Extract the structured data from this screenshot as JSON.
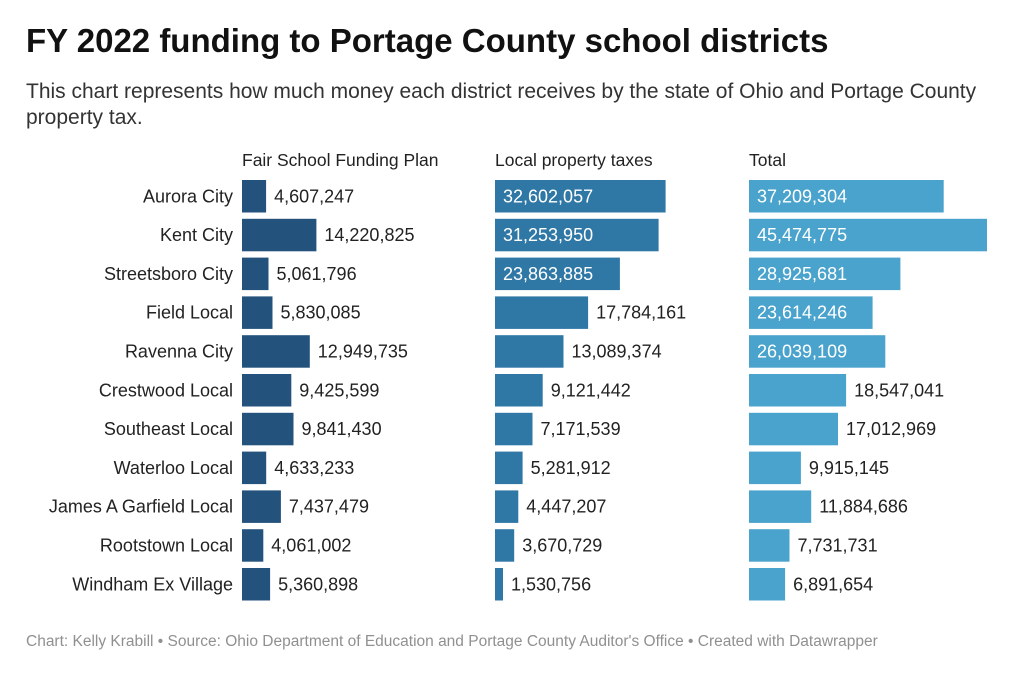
{
  "header": {
    "title": "FY 2022 funding to Portage County school districts",
    "subtitle": "This chart represents how much money each district receives by the state of Ohio and Portage County property tax."
  },
  "footer": {
    "text": "Chart: Kelly Krabill • Source: Ohio Department of Education and Portage County Auditor's Office • Created with Datawrapper"
  },
  "colors": {
    "fair_school": "#23527c",
    "local_property": "#2f78a6",
    "total": "#4aa3cc",
    "label_dark": "#222222",
    "label_light": "#ffffff"
  },
  "chart_data": {
    "type": "bar",
    "orientation": "horizontal",
    "categories": [
      "Aurora City",
      "Kent City",
      "Streetsboro City",
      "Field Local",
      "Ravenna City",
      "Crestwood Local",
      "Southeast Local",
      "Waterloo Local",
      "James A Garfield Local",
      "Rootstown Local",
      "Windham Ex Village"
    ],
    "series": [
      {
        "name": "Fair School Funding Plan",
        "values": [
          4607247,
          14220825,
          5061796,
          5830085,
          12949735,
          9425599,
          9841430,
          4633233,
          7437479,
          4061002,
          5360898
        ]
      },
      {
        "name": "Local property taxes",
        "values": [
          32602057,
          31253950,
          23863885,
          17784161,
          13089374,
          9121442,
          7171539,
          5281912,
          4447207,
          3670729,
          1530756
        ]
      },
      {
        "name": "Total",
        "values": [
          37209304,
          45474775,
          28925681,
          23614246,
          26039109,
          18547041,
          17012969,
          9915145,
          11884686,
          7731731,
          6891654
        ]
      }
    ],
    "value_labels": [
      [
        "4,607,247",
        "14,220,825",
        "5,061,796",
        "5,830,085",
        "12,949,735",
        "9,425,599",
        "9,841,430",
        "4,633,233",
        "7,437,479",
        "4,061,002",
        "5,360,898"
      ],
      [
        "32,602,057",
        "31,253,950",
        "23,863,885",
        "17,784,161",
        "13,089,374",
        "9,121,442",
        "7,171,539",
        "5,281,912",
        "4,447,207",
        "3,670,729",
        "1,530,756"
      ],
      [
        "37,209,304",
        "45,474,775",
        "28,925,681",
        "23,614,246",
        "26,039,109",
        "18,547,041",
        "17,012,969",
        "9,915,145",
        "11,884,686",
        "7,731,731",
        "6,891,654"
      ]
    ],
    "label_inside": [
      [
        false,
        false,
        false,
        false,
        false,
        false,
        false,
        false,
        false,
        false,
        false
      ],
      [
        true,
        true,
        true,
        false,
        false,
        false,
        false,
        false,
        false,
        false,
        false
      ],
      [
        true,
        true,
        true,
        true,
        true,
        false,
        false,
        false,
        false,
        false,
        false
      ]
    ],
    "xlim": [
      0,
      45474775
    ],
    "grid": false,
    "legend": "none"
  }
}
